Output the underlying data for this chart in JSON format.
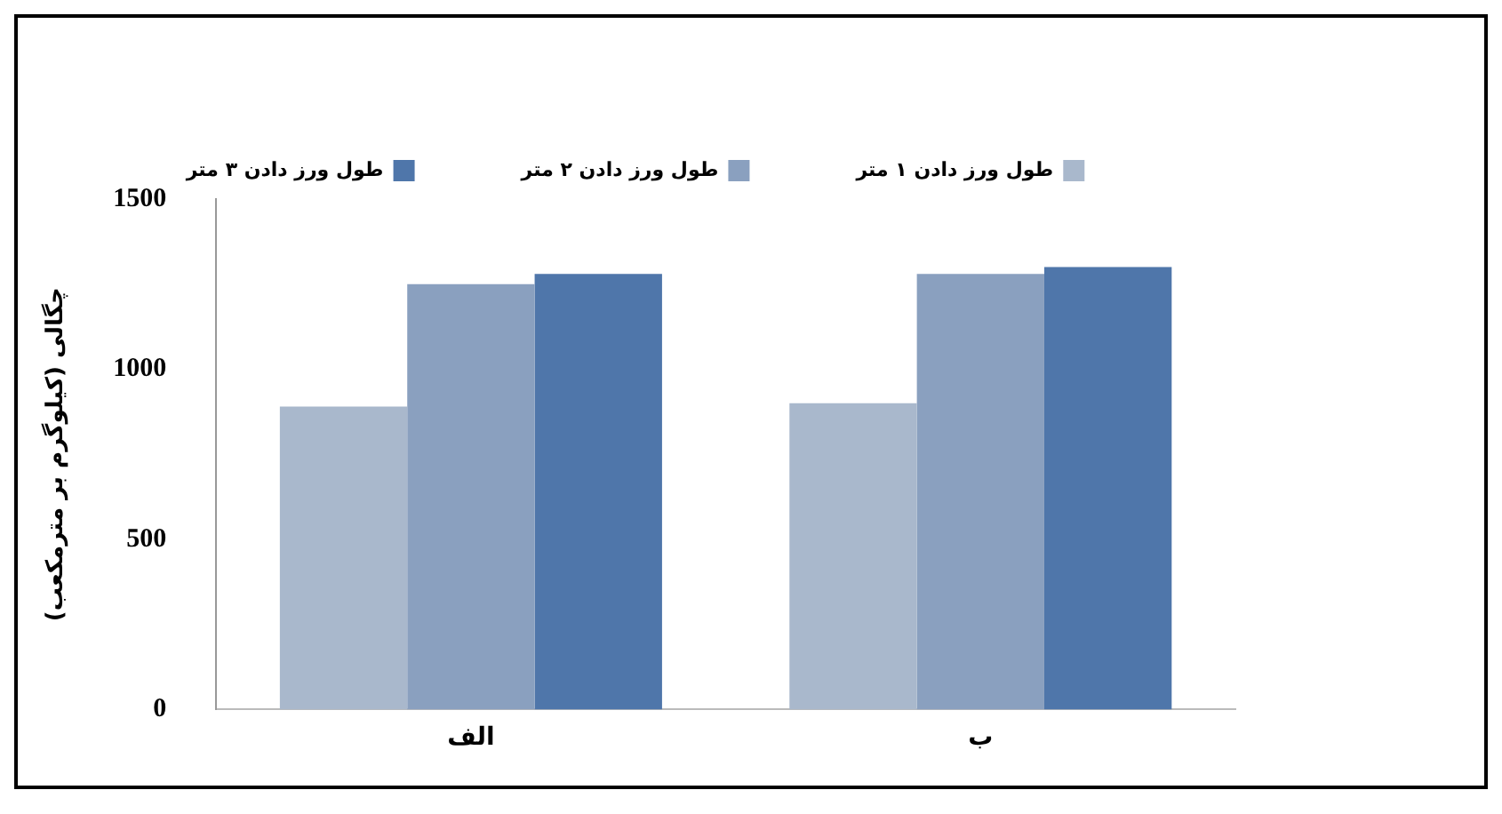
{
  "chart_data": {
    "type": "bar",
    "ylabel": "چگالی (کیلوگرم بر مترمکعب)",
    "categories": [
      "الف",
      "ب"
    ],
    "series": [
      {
        "name": "طول ورز دادن ۱ متر",
        "color": "#a9b8cc",
        "values": [
          890,
          900
        ]
      },
      {
        "name": "طول ورز دادن ۲ متر",
        "color": "#8aa0bf",
        "values": [
          1250,
          1280
        ]
      },
      {
        "name": "طول ورز دادن ۳ متر",
        "color": "#4f76aa",
        "values": [
          1280,
          1300
        ]
      }
    ],
    "ylim": [
      0,
      1500
    ],
    "yticks": [
      0,
      500,
      1000,
      1500
    ],
    "grid": false,
    "legend": "top"
  }
}
